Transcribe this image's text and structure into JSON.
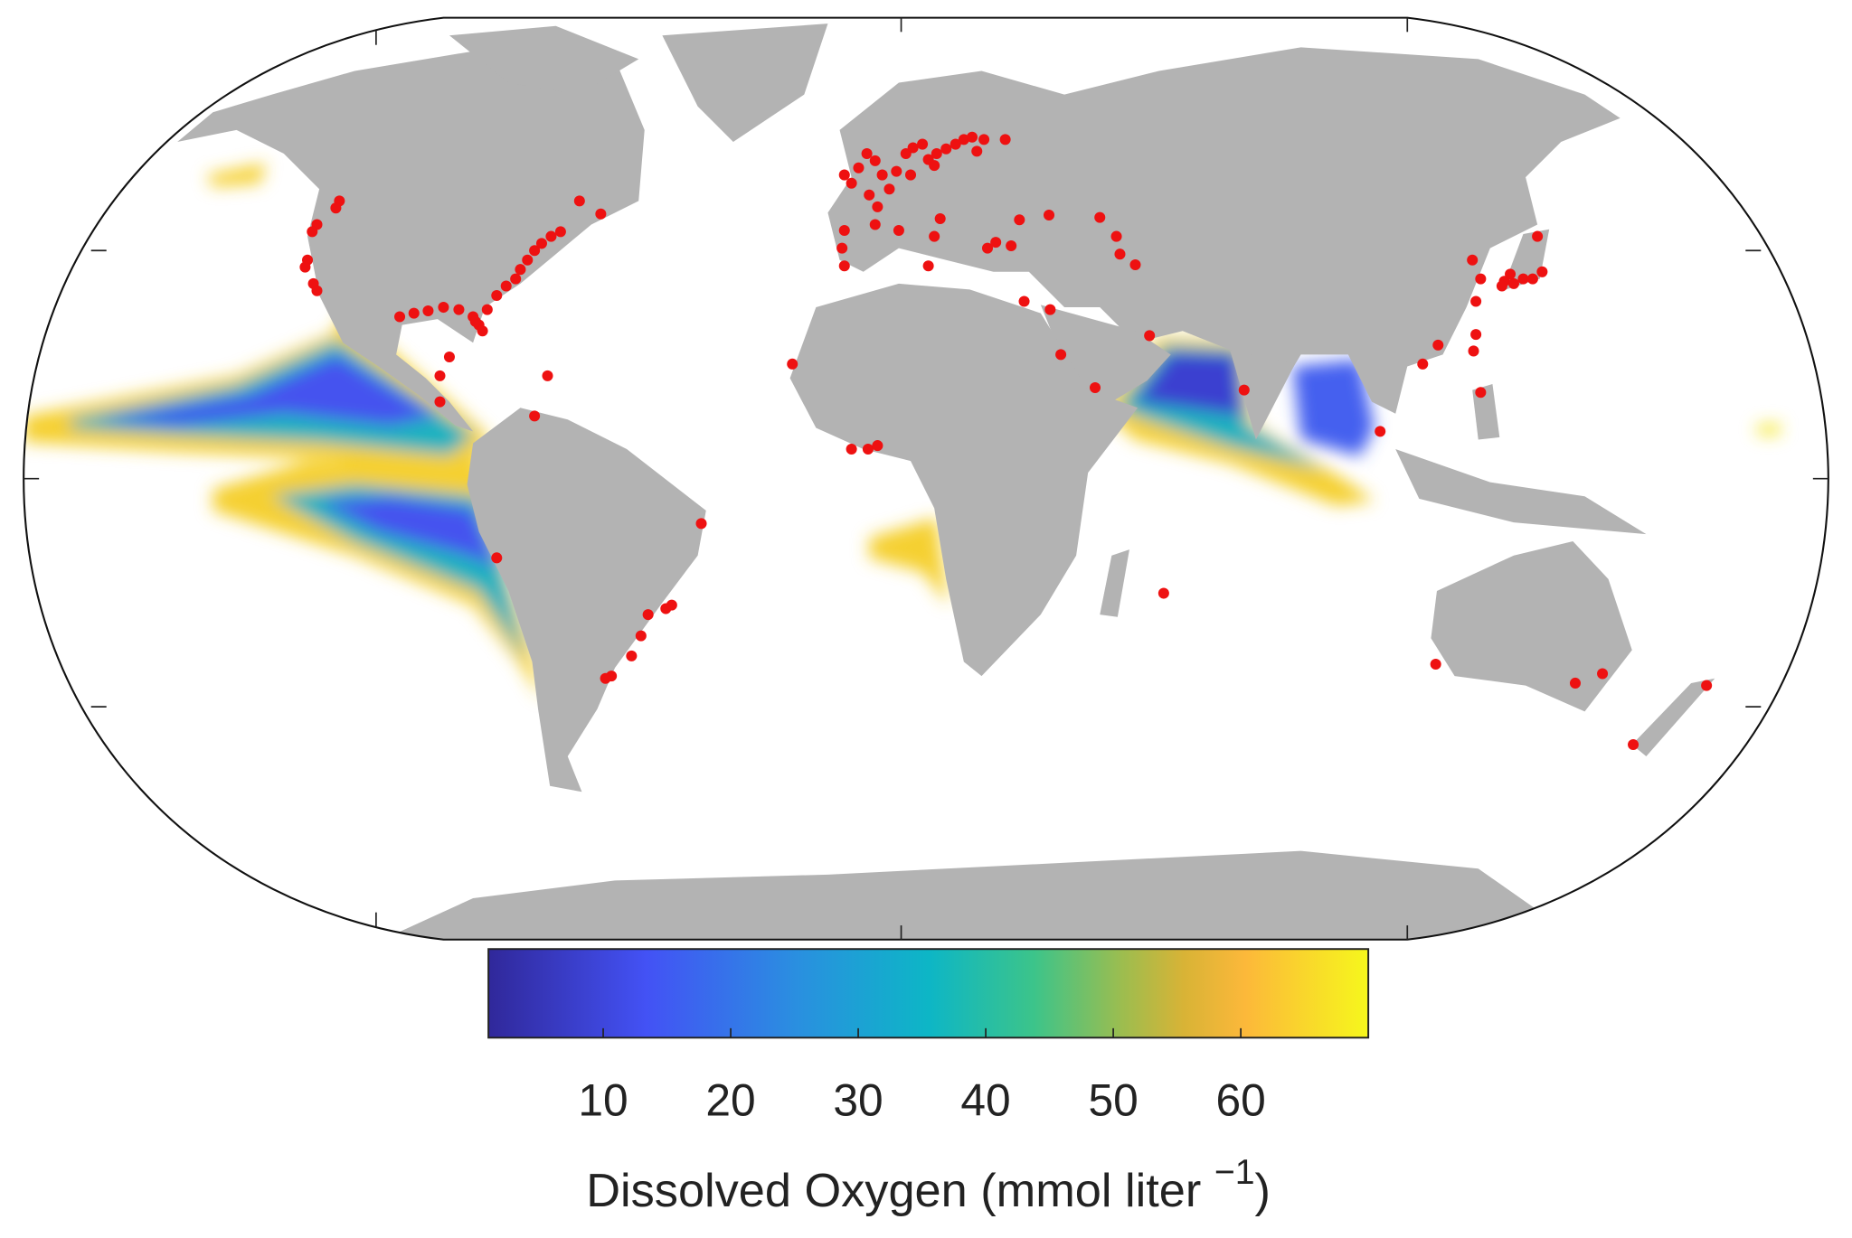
{
  "colorbar": {
    "label_prefix": "Dissolved Oxygen (mmol liter ",
    "label_exponent": "−1",
    "label_suffix": ")",
    "lim": [
      1,
      70
    ],
    "ticks": [
      10,
      20,
      30,
      40,
      50,
      60
    ]
  }
}
